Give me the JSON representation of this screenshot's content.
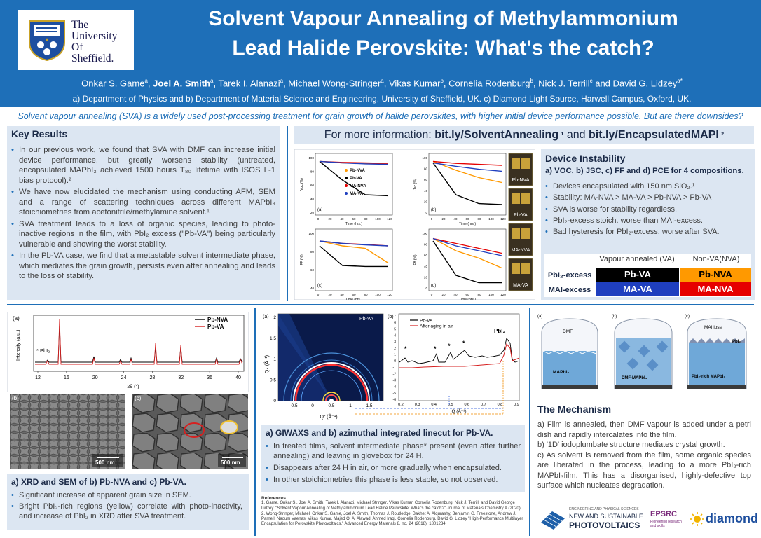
{
  "header": {
    "university": [
      "The",
      "University",
      "Of",
      "Sheffield."
    ],
    "title_line1": "Solvent Vapour Annealing of Methylammonium",
    "title_line2": "Lead Halide Perovskite: What's the catch?",
    "authors": [
      {
        "name": "Onkar S. Game",
        "sup": "a",
        "bold": false
      },
      {
        "name": "Joel A. Smith",
        "sup": "a",
        "bold": true
      },
      {
        "name": "Tarek I. Alanazi",
        "sup": "a",
        "bold": false
      },
      {
        "name": "Michael Wong-Stringer",
        "sup": "a",
        "bold": false
      },
      {
        "name": "Vikas Kumar",
        "sup": "b",
        "bold": false
      },
      {
        "name": "Cornelia Rodenburg",
        "sup": "b",
        "bold": false
      },
      {
        "name": "Nick J. Terrill",
        "sup": "c",
        "bold": false
      },
      {
        "name": "David G. Lidzey",
        "sup": "a*",
        "bold": false
      }
    ],
    "affiliations": "a) Department of Physics and b) Department of Material Science and Engineering, University of Sheffield, UK. c) Diamond Light Source, Harwell Campus, Oxford, UK."
  },
  "intro": "Solvent vapour annealing (SVA) is a widely used post-processing treatment for grain growth of halide perovskites, with higher initial device performance possible. But are there downsides?",
  "key_results": {
    "title": "Key Results",
    "items": [
      "In our previous work, we found that SVA with DMF can increase initial device performance, but greatly worsens stability (untreated, encapsulated MAPbI₃ achieved 1500 hours T₈₀ lifetime with ISOS L-1 bias protocol).²",
      "We have now elucidated the mechanism using conducting AFM, SEM and a range of scattering techniques across different MAPbI₃ stoichiometries from acetonitrile/methylamine solvent.¹",
      "SVA treatment leads to a loss of organic species, leading to photo-inactive regions in the film, with PbI₂ excess (\"Pb-VA\") being particularly vulnerable and showing the worst stability.",
      "In the Pb-VA case, we find that a metastable solvent intermediate phase, which mediates the grain growth, persists even after annealing and leads to the loss of stability."
    ]
  },
  "more_info": {
    "prefix": "For more information: ",
    "link1": "bit.ly/SolventAnnealing",
    "sup1": " ¹",
    "mid": " and ",
    "link2": "bit.ly/EncapsulatedMAPI",
    "sup2": " ²"
  },
  "device_instability": {
    "title": "Device Instability",
    "subtitle": "a) VOC, b) JSC, c) FF and d) PCE for 4 compositions.",
    "items": [
      "Devices encapsulated with 150 nm SiO₂.¹",
      "Stability: MA-NVA > MA-VA > Pb-NVA > Pb-VA",
      "SVA is worse for stability regardless.",
      "PbI₂-excess stoich. worse than MAI-excess.",
      "Bad hysteresis for PbI₂-excess, worse after SVA."
    ],
    "table": {
      "col1": "Vapour annealed (VA)",
      "col2": "Non-VA(NVA)",
      "row1": "PbI₂-excess",
      "row2": "MAI-excess",
      "pbva": "Pb-VA",
      "pbnva": "Pb-NVA",
      "mava": "MA-VA",
      "manva": "MA-NVA"
    },
    "colors": {
      "pb_va": "#000000",
      "pb_nva": "#ff9900",
      "ma_va": "#1f3fbf",
      "ma_nva": "#e60000"
    }
  },
  "device_charts": {
    "panels": [
      "(a)",
      "(b)",
      "(c)",
      "(d)"
    ],
    "ylabels": [
      "Voc (%)",
      "Jsc (%)",
      "FF (%)",
      "Eff (%)"
    ],
    "xlabel": "Time (hrs.)",
    "xticks": [
      "0",
      "20",
      "40",
      "60",
      "80",
      "100",
      "120"
    ],
    "yticks_a": [
      "20",
      "40",
      "60",
      "80",
      "100"
    ],
    "yticks_b": [
      "0",
      "20",
      "40",
      "60",
      "80",
      "100"
    ],
    "yticks_c": [
      "40",
      "60",
      "80",
      "100"
    ],
    "yticks_d": [
      "0",
      "20",
      "40",
      "60",
      "80",
      "100"
    ],
    "legend": [
      "Pb-NVA",
      "Pb-VA",
      "MA-NVA",
      "MA-VA"
    ],
    "photo_labels": [
      "Pb-NVA",
      "Pb-VA",
      "MA-NVA",
      "MA-VA"
    ]
  },
  "xrd": {
    "panel": "(a)",
    "ylabel": "Intensity (a.u.)",
    "xlabel": "2θ (°)",
    "xticks": [
      "12",
      "16",
      "20",
      "24",
      "28",
      "32",
      "36",
      "40"
    ],
    "legend": [
      "Pb-NVA",
      "Pb-VA"
    ],
    "annotation": "* PbI₂",
    "sem_b": "(b)",
    "sem_c": "(c)",
    "scale": "500 nm"
  },
  "xrd_panel": {
    "title": "a) XRD and SEM of b) Pb-NVA and c) Pb-VA.",
    "items": [
      "Significant increase of apparent grain size in SEM.",
      "Bright PbI₂-rich regions (yellow) correlate with photo-inactivity, and increase of PbI₂ in XRD after SVA treatment."
    ]
  },
  "giwaxs": {
    "panel_a": "(a)",
    "panel_b": "(b)",
    "label": "Pb-VA",
    "ylabel": "Qz (Å⁻¹)",
    "xlabel": "Qr (Å⁻¹)",
    "yticks": [
      "0",
      "0.5",
      "1",
      "1.5",
      "2"
    ],
    "xticks": [
      "-0.5",
      "0",
      "0.5",
      "1",
      "1.5"
    ],
    "b_legend": [
      "Pb-VA",
      "After aging in air"
    ],
    "b_annot": "PbI₂",
    "b_xlabel": "Q (Å⁻¹)",
    "b_xticks": [
      "0.2",
      "0.3",
      "0.4",
      "0.5",
      "0.6",
      "0.7",
      "0.8",
      "0.9"
    ],
    "b_yticks": [
      "7",
      "6",
      "5",
      "4",
      "3",
      "2",
      "1",
      "0",
      "-1",
      "-2",
      "-3",
      "-4",
      "-5",
      "-6"
    ]
  },
  "giwaxs_panel": {
    "title": "a) GIWAXS and b) azimuthal integrated linecut for Pb-VA.",
    "items": [
      "In treated films, solvent intermediate phase* present (even after further annealing) and leaving in glovebox for 24 H.",
      "Disappears after 24 H in air, or more gradually when encapsulated.",
      "In other stoichiometries this phase is less stable, so not observed."
    ]
  },
  "references": {
    "heading": "References",
    "items": [
      "1.  Game, Onkar S., Joel A. Smith, Tarek I. Alanazi, Michael Stringer, Vikas Kumar, Cornelia Rodenburg, Nick J. Terrill, and David George Lidzey. \"Solvent Vapour Annealing of Methylammonium Lead Halide Perovskite: What's the catch?\" Journal of Materials Chemistry A (2020).",
      "2.  Wong-Stringer, Michael, Onkar S. Game, Joel A. Smith, Thomas J. Routledge, Bakhet A. Alqurashy, Benjamin G. Freestone, Andrew J. Parnell, Naoum Vaenas, Vikas Kumar, Majed O. A. Alawad, Ahmed Iraqi, Cornelia Rodenburg, David G. Lidzey \"High-Performance Multilayer Encapsulation for Perovskite Photovoltaics.\" Advanced Energy Materials 8, no. 24 (2018): 1801234."
    ]
  },
  "mechanism_fig": {
    "panels": [
      "(a)",
      "(b)",
      "(c)"
    ],
    "labels": [
      "DMF",
      "MAPbI₃",
      "DMF-MAPbI₃",
      "MAI loss",
      "PbI₂",
      "PbI₂-rich MAPbI₃"
    ]
  },
  "mechanism": {
    "title": "The Mechanism",
    "items": [
      "a) Film is annealed, then DMF vapour is added under a petri dish and rapidly intercalates into the film.",
      "b) '1D' iodoplumbate structure mediates crystal growth.",
      "c) As solvent is removed from the film, some organic species are liberated in the process, leading to a more PbI₂-rich MAPbI₃film. This has a disorganised, highly-defective top surface which nucleates degradation."
    ]
  },
  "logos": {
    "nsp_small": "ENGINEERING AND PHYSICAL SCIENCES",
    "nsp1": "NEW AND SUSTAINABLE",
    "nsp2": "PHOTOVOLTAICS",
    "epsrc": "EPSRC",
    "epsrc_sub": "Pioneering research and skills",
    "diamond": "diamond"
  }
}
